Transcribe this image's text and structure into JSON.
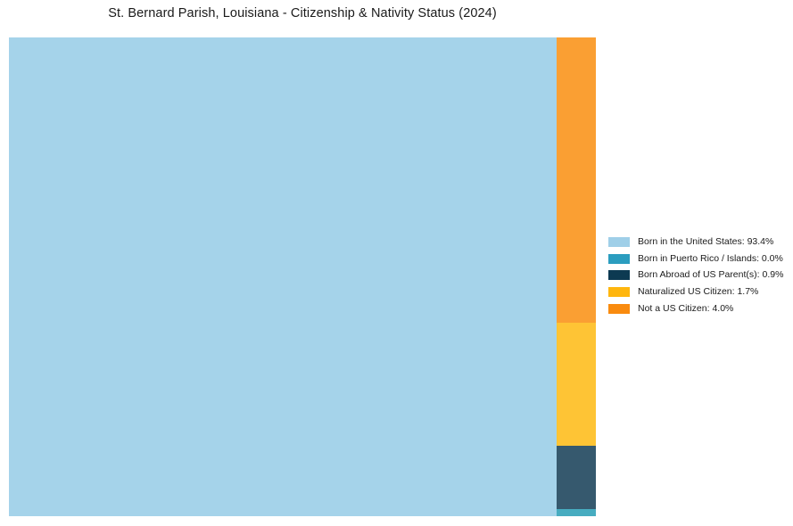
{
  "title": "St. Bernard Parish, Louisiana - Citizenship & Nativity Status (2024)",
  "colors": {
    "background": "#ffffff",
    "title_text": "#1a1a1a",
    "legend_text": "#1a1a1a"
  },
  "treemap": {
    "tiles": [
      {
        "name": "Born in the United States",
        "value_pct": 93.4,
        "fill": "#A5D3EA"
      },
      {
        "name": "Not a US Citizen",
        "value_pct": 4.0,
        "fill": "#FA9F33"
      },
      {
        "name": "Naturalized US Citizen",
        "value_pct": 1.7,
        "fill": "#FEC435"
      },
      {
        "name": "Born Abroad of US Parent(s)",
        "value_pct": 0.9,
        "fill": "#36596E"
      },
      {
        "name": "Born in Puerto Rico / Islands",
        "value_pct": 0.0,
        "fill": "#47ACC0"
      }
    ]
  },
  "legend": {
    "items": [
      {
        "label": "Born in the United States: 93.4%",
        "swatch_color": "#9FCFE8"
      },
      {
        "label": "Born in Puerto Rico / Islands: 0.0%",
        "swatch_color": "#2B9DBF"
      },
      {
        "label": "Born Abroad of US Parent(s): 0.9%",
        "swatch_color": "#0D3A52"
      },
      {
        "label": "Naturalized US Citizen: 1.7%",
        "swatch_color": "#FFB60E"
      },
      {
        "label": "Not a US Citizen: 4.0%",
        "swatch_color": "#F98B0F"
      }
    ]
  },
  "chart_data": {
    "type": "treemap",
    "title": "St. Bernard Parish, Louisiana - Citizenship & Nativity Status (2024)",
    "categories": [
      "Born in the United States",
      "Born in Puerto Rico / Islands",
      "Born Abroad of US Parent(s)",
      "Naturalized US Citizen",
      "Not a US Citizen"
    ],
    "values": [
      93.4,
      0.0,
      0.9,
      1.7,
      4.0
    ],
    "unit": "%",
    "legend_position": "right",
    "legend_labels": [
      "Born in the United States: 93.4%",
      "Born in Puerto Rico / Islands: 0.0%",
      "Born Abroad of US Parent(s): 0.9%",
      "Naturalized US Citizen: 1.7%",
      "Not a US Citizen: 4.0%"
    ],
    "colors": [
      "#9FCFE8",
      "#2B9DBF",
      "#0D3A52",
      "#FFB60E",
      "#F98B0F"
    ],
    "grid": false
  }
}
